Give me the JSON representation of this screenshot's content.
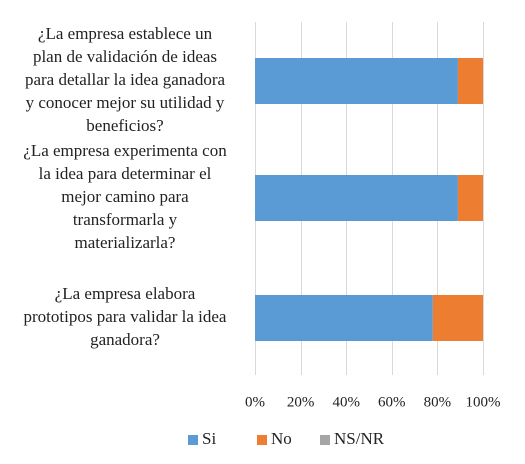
{
  "chart_data": {
    "type": "bar",
    "orientation": "horizontal",
    "stacked": "percent",
    "categories": [
      "¿La empresa establece un plan de validación de ideas para detallar la idea ganadora y conocer mejor su utilidad y beneficios?",
      "¿La empresa experimenta con la idea para determinar el mejor camino para transformarla y materializarla?",
      "¿La empresa elabora prototipos para validar la idea ganadora?"
    ],
    "category_lines": [
      [
        "¿La empresa establece un",
        "plan de validación de ideas",
        "para detallar la idea ganadora",
        "y conocer mejor su utilidad y",
        "beneficios?"
      ],
      [
        "¿La empresa experimenta con",
        "la idea para determinar el",
        "mejor camino para",
        "transformarla y",
        "materializarla?"
      ],
      [
        "¿La empresa elabora",
        "prototipos para validar la idea",
        "ganadora?"
      ]
    ],
    "series": [
      {
        "name": "Si",
        "color": "#5b9bd5",
        "values": [
          89,
          89,
          78
        ]
      },
      {
        "name": "No",
        "color": "#ed7d31",
        "values": [
          11,
          11,
          22
        ]
      },
      {
        "name": "NS/NR",
        "color": "#a5a5a5",
        "values": [
          0,
          0,
          0
        ]
      }
    ],
    "xlim": [
      0,
      100
    ],
    "x_ticks": [
      "0%",
      "20%",
      "40%",
      "60%",
      "80%",
      "100%"
    ],
    "grid": "vertical",
    "legend_position": "bottom",
    "title": "",
    "xlabel": "",
    "ylabel": ""
  }
}
